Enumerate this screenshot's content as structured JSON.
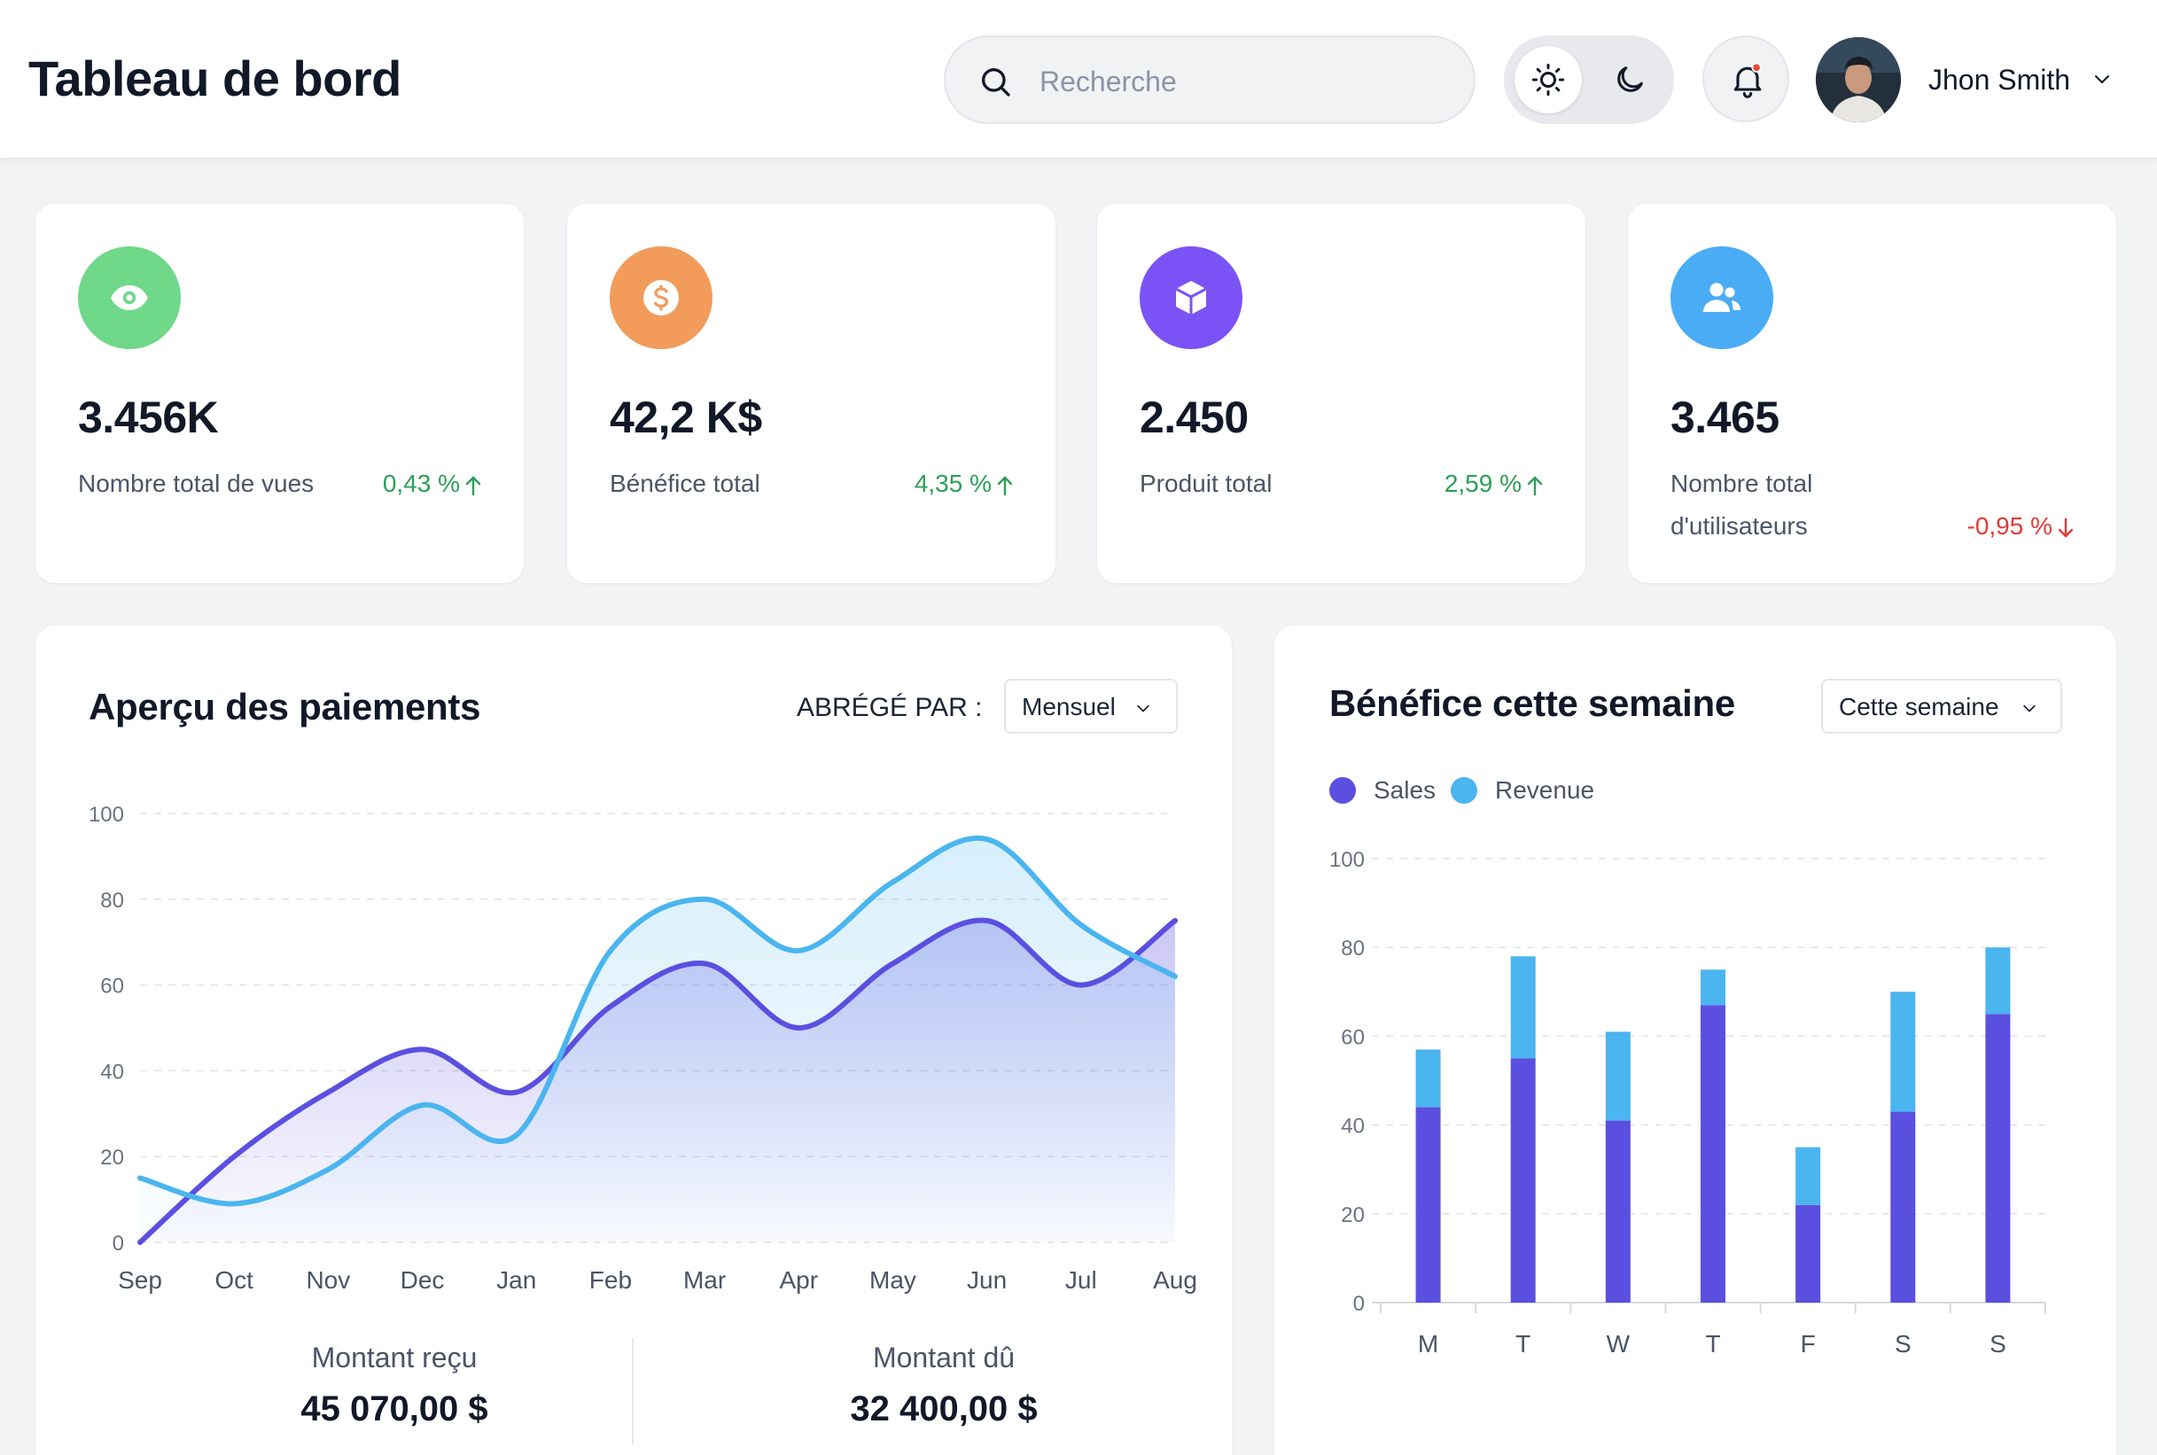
{
  "header": {
    "title": "Tableau de bord",
    "search_placeholder": "Recherche",
    "user_name": "Jhon Smith"
  },
  "stats": [
    {
      "value": "3.456K",
      "label": "Nombre total de vues",
      "change": "0,43 %",
      "trend": "up",
      "icon": "eye-icon",
      "color": "#6fd889"
    },
    {
      "value": "42,2 K$",
      "label": "Bénéfice total",
      "change": "4,35 %",
      "trend": "up",
      "icon": "dollar-icon",
      "color": "#f29b5a"
    },
    {
      "value": "2.450",
      "label": "Produit total",
      "change": "2,59 %",
      "trend": "up",
      "icon": "box-icon",
      "color": "#7b52f5"
    },
    {
      "value": "3.465",
      "label": "Nombre total d'utilisateurs",
      "change": "-0,95 %",
      "trend": "down",
      "icon": "users-icon",
      "color": "#4aacf5"
    }
  ],
  "payments": {
    "title": "Aperçu des paiements",
    "filter_label": "ABRÉGÉ PAR :",
    "filter_value": "Mensuel",
    "received_label": "Montant reçu",
    "received_value": "45 070,00 $",
    "due_label": "Montant dû",
    "due_value": "32 400,00 $"
  },
  "profit": {
    "title": "Bénéfice cette semaine",
    "filter_value": "Cette semaine"
  },
  "chart_data": [
    {
      "type": "area",
      "categories": [
        "Sep",
        "Oct",
        "Nov",
        "Dec",
        "Jan",
        "Feb",
        "Mar",
        "Apr",
        "May",
        "Jun",
        "Jul",
        "Aug"
      ],
      "yticks": [
        0,
        20,
        40,
        60,
        80,
        100
      ],
      "ylim": [
        0,
        100
      ],
      "grid": true,
      "series": [
        {
          "values": [
            0,
            20,
            35,
            45,
            35,
            55,
            65,
            50,
            65,
            75,
            60,
            75
          ],
          "color": "#5b4fe0"
        },
        {
          "values": [
            15,
            9,
            17,
            32,
            25,
            68,
            80,
            68,
            84,
            94,
            74,
            62
          ],
          "color": "#4ab5ef"
        }
      ]
    },
    {
      "type": "bar",
      "stacked": true,
      "categories": [
        "M",
        "T",
        "W",
        "T",
        "F",
        "S",
        "S"
      ],
      "yticks": [
        0,
        20,
        40,
        60,
        80,
        100
      ],
      "ylim": [
        0,
        100
      ],
      "grid": true,
      "legend": "top-left",
      "series": [
        {
          "name": "Sales",
          "values": [
            44,
            55,
            41,
            67,
            22,
            43,
            65
          ],
          "color": "#5b4fe0"
        },
        {
          "name": "Revenue",
          "values": [
            13,
            23,
            20,
            8,
            13,
            27,
            15
          ],
          "color": "#4ab5ef"
        }
      ]
    }
  ]
}
